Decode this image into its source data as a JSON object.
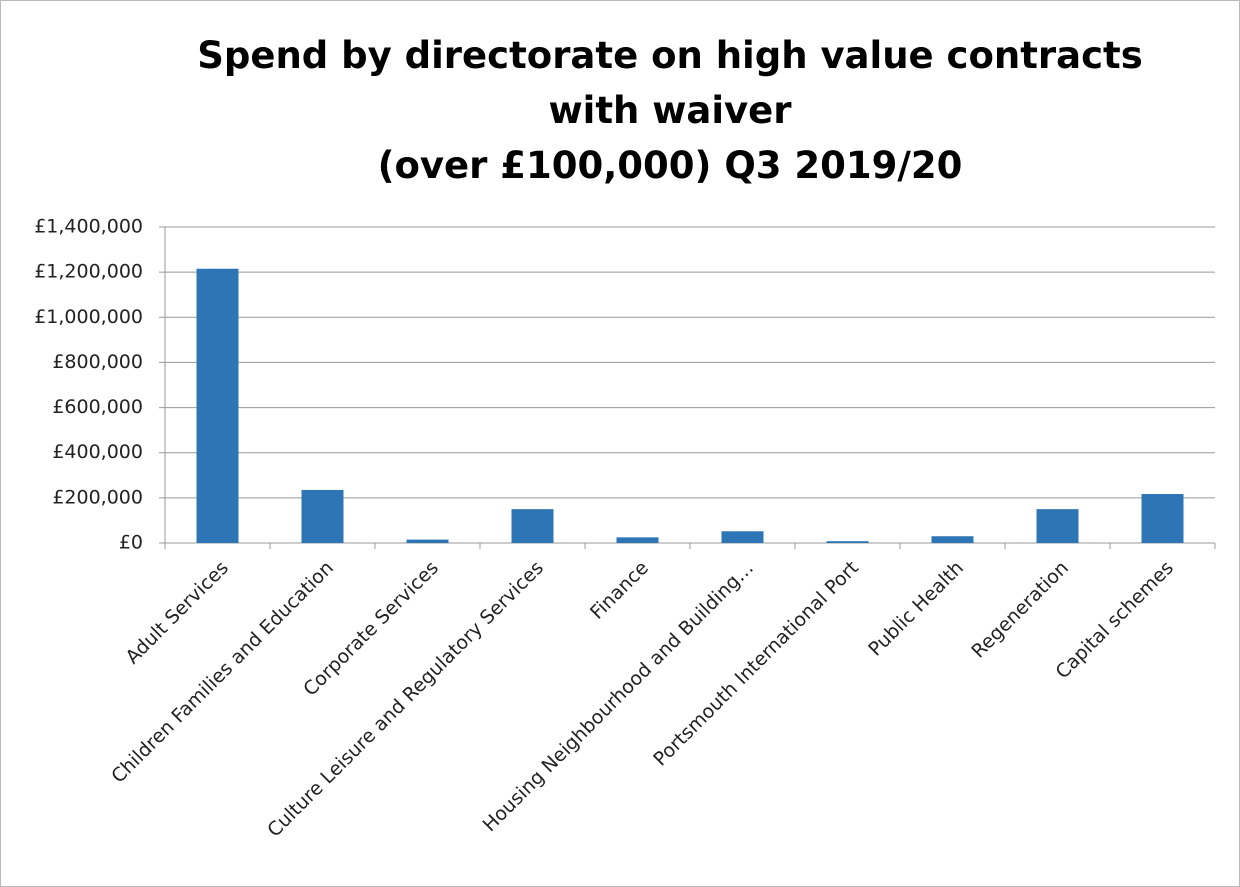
{
  "chart_data": {
    "type": "bar",
    "title": "Spend by directorate on high value contracts with waiver\n(over £100,000) Q3 2019/20",
    "categories": [
      "Adult Services",
      "Children Families and Education",
      "Corporate Services",
      "Culture Leisure and Regulatory Services",
      "Finance",
      "Housing Neighbourhood and Building…",
      "Portsmouth International Port",
      "Public Health",
      "Regeneration",
      "Capital schemes"
    ],
    "values": [
      1215000,
      235000,
      15000,
      150000,
      25000,
      52000,
      8000,
      30000,
      150000,
      217000
    ],
    "color": "#2e75b6",
    "ylim": [
      0,
      1400000
    ],
    "yticks": [
      {
        "value": 0,
        "label": "£0"
      },
      {
        "value": 200000,
        "label": "£200,000"
      },
      {
        "value": 400000,
        "label": "£400,000"
      },
      {
        "value": 600000,
        "label": "£600,000"
      },
      {
        "value": 800000,
        "label": "£800,000"
      },
      {
        "value": 1000000,
        "label": "£1,000,000"
      },
      {
        "value": 1200000,
        "label": "£1,200,000"
      },
      {
        "value": 1400000,
        "label": "£1,400,000"
      }
    ],
    "grid": true
  }
}
